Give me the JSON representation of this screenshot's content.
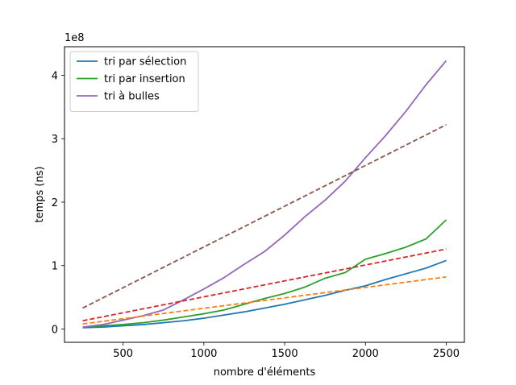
{
  "chart_data": {
    "type": "line",
    "title": "",
    "xlabel": "nombre d'éléments",
    "ylabel": "temps (ns)",
    "y_scale_label": "1e8",
    "xlim": [
      137.5,
      2612.5
    ],
    "ylim": [
      -0.21,
      4.45
    ],
    "y_unit_multiplier": 100000000,
    "xticks": [
      500,
      1000,
      1500,
      2000,
      2500
    ],
    "yticks": [
      0,
      1,
      2,
      3,
      4
    ],
    "grid": false,
    "legend_position": "top-left",
    "series": [
      {
        "name": "tri par sélection",
        "color": "#1f77b4",
        "dash": "solid",
        "in_legend": true,
        "x": [
          250,
          375,
          500,
          625,
          750,
          875,
          1000,
          1125,
          1250,
          1375,
          1500,
          1625,
          1750,
          1875,
          2000,
          2125,
          2250,
          2375,
          2500
        ],
        "y": [
          0.02,
          0.03,
          0.05,
          0.07,
          0.1,
          0.13,
          0.17,
          0.22,
          0.27,
          0.33,
          0.39,
          0.46,
          0.53,
          0.61,
          0.68,
          0.78,
          0.87,
          0.96,
          1.08
        ]
      },
      {
        "name": "tri par insertion",
        "color": "#2ca02c",
        "dash": "solid",
        "in_legend": true,
        "x": [
          250,
          375,
          500,
          625,
          750,
          875,
          1000,
          1125,
          1250,
          1375,
          1500,
          1625,
          1750,
          1875,
          2000,
          2125,
          2250,
          2375,
          2500
        ],
        "y": [
          0.03,
          0.05,
          0.07,
          0.1,
          0.14,
          0.19,
          0.24,
          0.3,
          0.39,
          0.48,
          0.56,
          0.66,
          0.8,
          0.89,
          1.1,
          1.19,
          1.29,
          1.42,
          1.72
        ]
      },
      {
        "name": "tri à bulles",
        "color": "#9467bd",
        "dash": "solid",
        "in_legend": true,
        "x": [
          250,
          375,
          500,
          625,
          750,
          875,
          1000,
          1125,
          1250,
          1375,
          1500,
          1625,
          1750,
          1875,
          2000,
          2125,
          2250,
          2375,
          2500
        ],
        "y": [
          0.03,
          0.07,
          0.14,
          0.21,
          0.3,
          0.46,
          0.63,
          0.81,
          1.02,
          1.22,
          1.48,
          1.77,
          2.03,
          2.33,
          2.7,
          3.05,
          3.43,
          3.85,
          4.23
        ]
      },
      {
        "color": "#ff7f0e",
        "dash": "dashed",
        "in_legend": false,
        "x": [
          250,
          2500
        ],
        "y": [
          0.08,
          0.82
        ]
      },
      {
        "color": "#d62728",
        "dash": "dashed",
        "in_legend": false,
        "x": [
          250,
          2500
        ],
        "y": [
          0.13,
          1.26
        ]
      },
      {
        "color": "#8c564b",
        "dash": "dashed",
        "in_legend": false,
        "x": [
          250,
          2500
        ],
        "y": [
          0.33,
          3.22
        ]
      }
    ]
  }
}
